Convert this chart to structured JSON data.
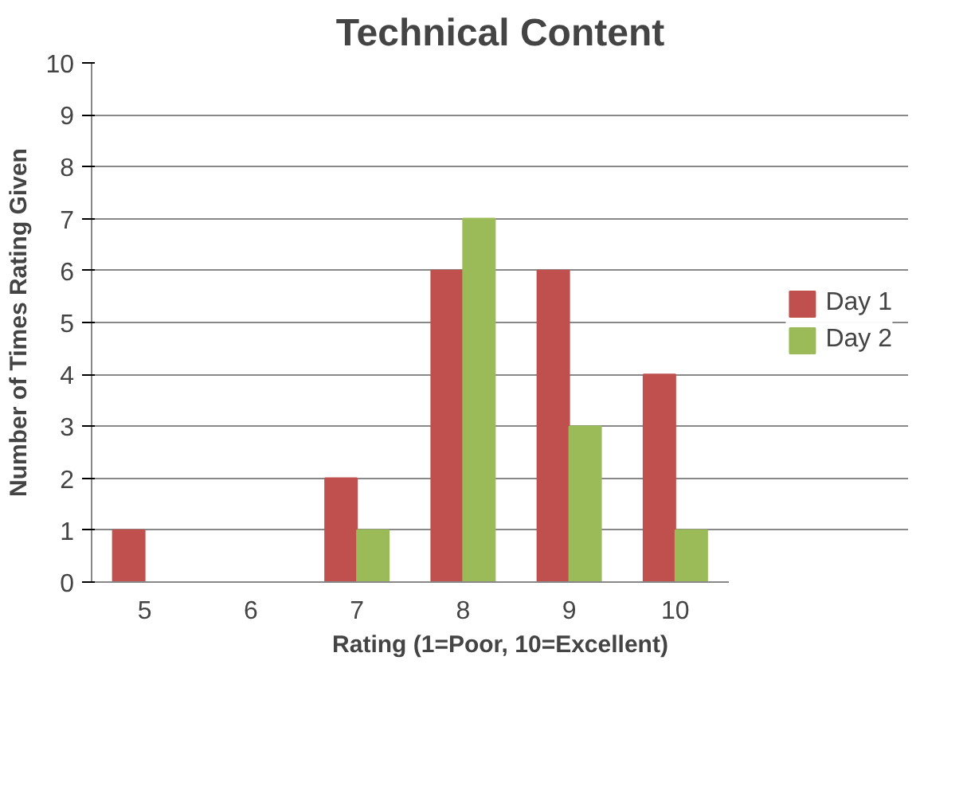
{
  "chart_data": {
    "type": "bar",
    "title": "Technical Content",
    "xlabel": "Rating (1=Poor, 10=Excellent)",
    "ylabel": "Number of Times Rating Given",
    "categories": [
      "5",
      "6",
      "7",
      "8",
      "9",
      "10"
    ],
    "series": [
      {
        "name": "Day 1",
        "color": "#c0504d",
        "values": [
          1,
          0,
          2,
          6,
          6,
          4
        ]
      },
      {
        "name": "Day 2",
        "color": "#9bbb59",
        "values": [
          0,
          0,
          1,
          7,
          3,
          1
        ]
      }
    ],
    "ylim": [
      0,
      10
    ],
    "yticks": [
      0,
      1,
      2,
      3,
      4,
      5,
      6,
      7,
      8,
      9,
      10
    ],
    "grid": "y",
    "legend": "right"
  }
}
